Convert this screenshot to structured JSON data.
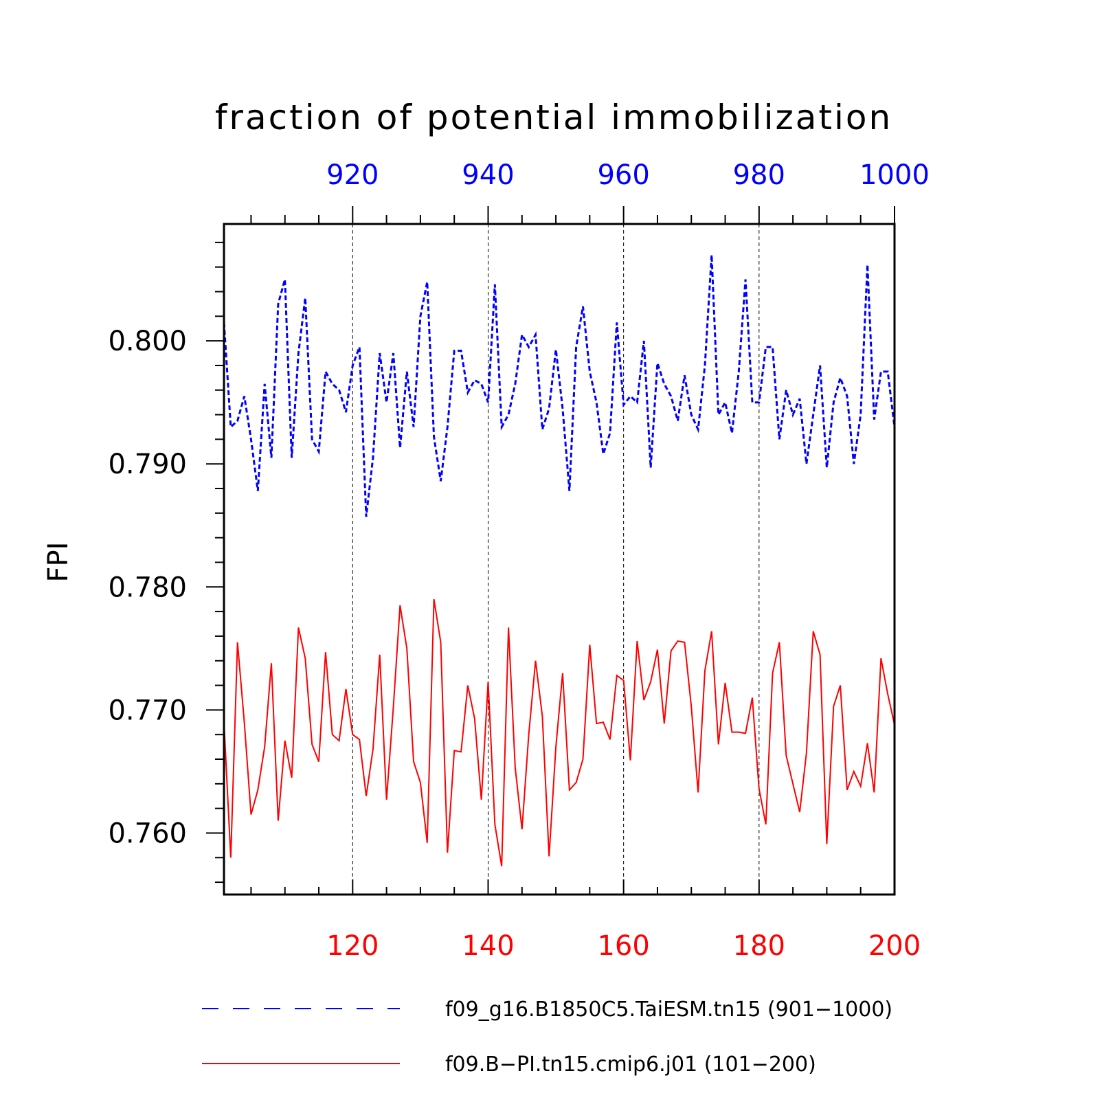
{
  "chart_data": {
    "type": "line",
    "title": "fraction of potential immobilization",
    "ylabel": "FPI",
    "ylim": [
      0.755,
      0.8095
    ],
    "yticks": [
      0.76,
      0.77,
      0.78,
      0.79,
      0.8
    ],
    "ytick_labels": [
      "0.760",
      "0.770",
      "0.780",
      "0.790",
      "0.800"
    ],
    "grid": "dashed vertical lines at major x ticks",
    "legend_position": "bottom",
    "x_top": {
      "range": [
        901,
        1000
      ],
      "ticks": [
        920,
        940,
        960,
        980,
        1000
      ],
      "tick_labels": [
        "920",
        "940",
        "960",
        "980",
        "1000"
      ],
      "color": "#0000ff"
    },
    "x_bottom": {
      "range": [
        101,
        200
      ],
      "ticks": [
        120,
        140,
        160,
        180,
        200
      ],
      "tick_labels": [
        "120",
        "140",
        "160",
        "180",
        "200"
      ],
      "color": "#ff0000"
    },
    "series": [
      {
        "name": "f09_g16.B1850C5.TaiESM.tn15 (901−1000)",
        "axis": "top",
        "color": "#0000ff",
        "style": "dashed",
        "x_start": 901,
        "values": [
          0.8015,
          0.793,
          0.7935,
          0.7955,
          0.792,
          0.7878,
          0.7965,
          0.7905,
          0.803,
          0.805,
          0.7905,
          0.799,
          0.8035,
          0.792,
          0.791,
          0.7975,
          0.7965,
          0.796,
          0.7942,
          0.798,
          0.7995,
          0.7857,
          0.7905,
          0.799,
          0.795,
          0.799,
          0.7913,
          0.7975,
          0.793,
          0.802,
          0.8048,
          0.7922,
          0.7886,
          0.793,
          0.7992,
          0.7992,
          0.7958,
          0.7968,
          0.7965,
          0.795,
          0.8046,
          0.793,
          0.794,
          0.7965,
          0.8005,
          0.7995,
          0.8005,
          0.7928,
          0.7945,
          0.7993,
          0.7945,
          0.7878,
          0.7995,
          0.8028,
          0.7975,
          0.795,
          0.7908,
          0.7925,
          0.8015,
          0.7948,
          0.7955,
          0.795,
          0.8,
          0.7897,
          0.7982,
          0.7965,
          0.7955,
          0.7935,
          0.7972,
          0.794,
          0.7928,
          0.798,
          0.807,
          0.794,
          0.795,
          0.7925,
          0.7975,
          0.805,
          0.795,
          0.795,
          0.7995,
          0.7995,
          0.792,
          0.796,
          0.794,
          0.7953,
          0.79,
          0.794,
          0.798,
          0.7897,
          0.795,
          0.797,
          0.7955,
          0.79,
          0.794,
          0.8062,
          0.7936,
          0.7975,
          0.7975,
          0.793
        ]
      },
      {
        "name": "f09.B−PI.tn15.cmip6.j01 (101−200)",
        "axis": "bottom",
        "color": "#ff0000",
        "style": "solid",
        "x_start": 101,
        "values": [
          0.769,
          0.758,
          0.7755,
          0.769,
          0.7615,
          0.7635,
          0.767,
          0.7738,
          0.761,
          0.7675,
          0.7645,
          0.7767,
          0.7742,
          0.7672,
          0.7658,
          0.7747,
          0.768,
          0.7675,
          0.7717,
          0.768,
          0.7676,
          0.763,
          0.7668,
          0.7745,
          0.7627,
          0.7702,
          0.7785,
          0.775,
          0.7658,
          0.7641,
          0.7592,
          0.779,
          0.7755,
          0.7584,
          0.7667,
          0.7666,
          0.772,
          0.7693,
          0.7627,
          0.7723,
          0.7607,
          0.7573,
          0.7767,
          0.7653,
          0.7603,
          0.768,
          0.774,
          0.7695,
          0.7581,
          0.767,
          0.773,
          0.7635,
          0.7641,
          0.766,
          0.7753,
          0.7689,
          0.769,
          0.7676,
          0.7728,
          0.7724,
          0.7659,
          0.7756,
          0.7708,
          0.7723,
          0.7749,
          0.7689,
          0.7748,
          0.7756,
          0.7755,
          0.7703,
          0.7633,
          0.7732,
          0.7764,
          0.7672,
          0.7722,
          0.7682,
          0.7682,
          0.7681,
          0.771,
          0.7636,
          0.7607,
          0.773,
          0.7755,
          0.7663,
          0.764,
          0.7617,
          0.7665,
          0.7764,
          0.7745,
          0.7591,
          0.7703,
          0.772,
          0.7635,
          0.765,
          0.7638,
          0.7673,
          0.7633,
          0.7742,
          0.7713,
          0.7688
        ]
      }
    ]
  }
}
